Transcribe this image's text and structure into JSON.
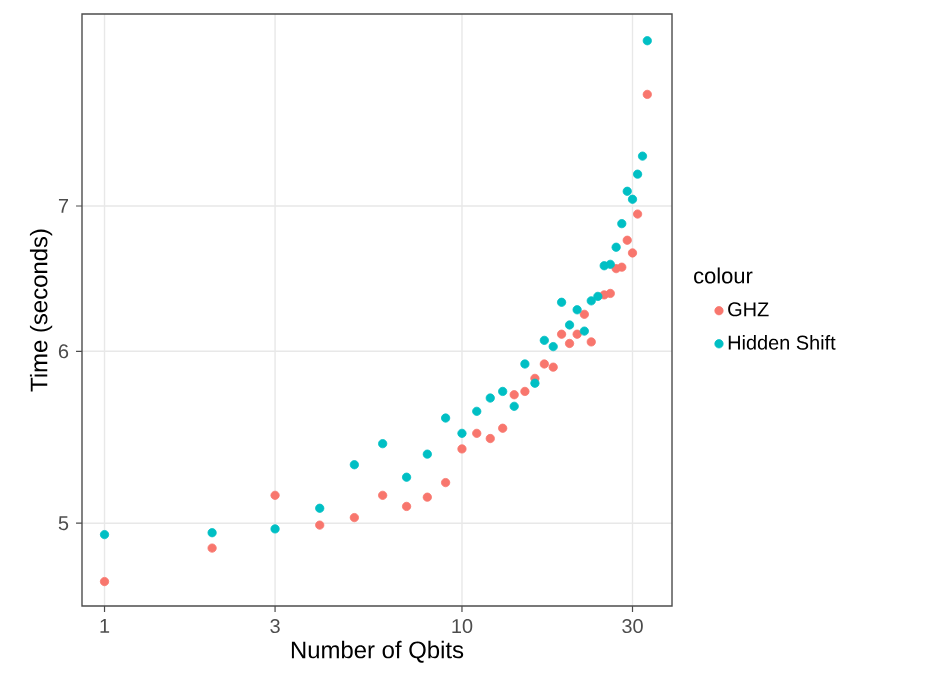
{
  "chart_data": {
    "type": "scatter",
    "xlabel": "Number of Qbits",
    "ylabel": "Time (seconds)",
    "legend_title": "colour",
    "x": [
      1,
      2,
      3,
      4,
      5,
      6,
      7,
      8,
      9,
      10,
      11,
      12,
      13,
      14,
      15,
      16,
      17,
      18,
      19,
      20,
      21,
      22,
      23,
      24,
      25,
      26,
      27,
      28,
      29,
      30,
      31,
      32,
      33
    ],
    "series": [
      {
        "name": "GHZ",
        "color": "#f8766d",
        "values": [
          4.7,
          4.87,
          5.15,
          4.99,
          5.03,
          5.15,
          5.09,
          5.14,
          5.22,
          5.41,
          5.5,
          5.47,
          5.53,
          5.73,
          5.75,
          5.83,
          5.92,
          5.9,
          6.11,
          6.05,
          6.11,
          6.24,
          6.06,
          null,
          6.37,
          6.38,
          6.55,
          6.56,
          6.75,
          6.66,
          6.94,
          null,
          7.88
        ]
      },
      {
        "name": "Hidden Shift",
        "color": "#00bfc4",
        "values": [
          4.94,
          4.95,
          4.97,
          5.08,
          5.32,
          5.44,
          5.25,
          5.38,
          5.59,
          5.5,
          5.63,
          5.71,
          5.75,
          5.66,
          5.92,
          5.8,
          6.07,
          6.03,
          6.32,
          6.17,
          6.27,
          6.13,
          6.33,
          6.36,
          6.57,
          6.58,
          6.7,
          6.87,
          7.11,
          7.05,
          7.24,
          7.38,
          8.34
        ]
      }
    ],
    "log": "xy",
    "xlim": [
      0.865,
      38.7
    ],
    "ylim": [
      4.58,
      8.58
    ],
    "xticks": [
      1,
      3,
      10,
      30
    ],
    "yticks": [
      5,
      6,
      7
    ],
    "grid": true,
    "legend": "right",
    "marker": "circle"
  }
}
